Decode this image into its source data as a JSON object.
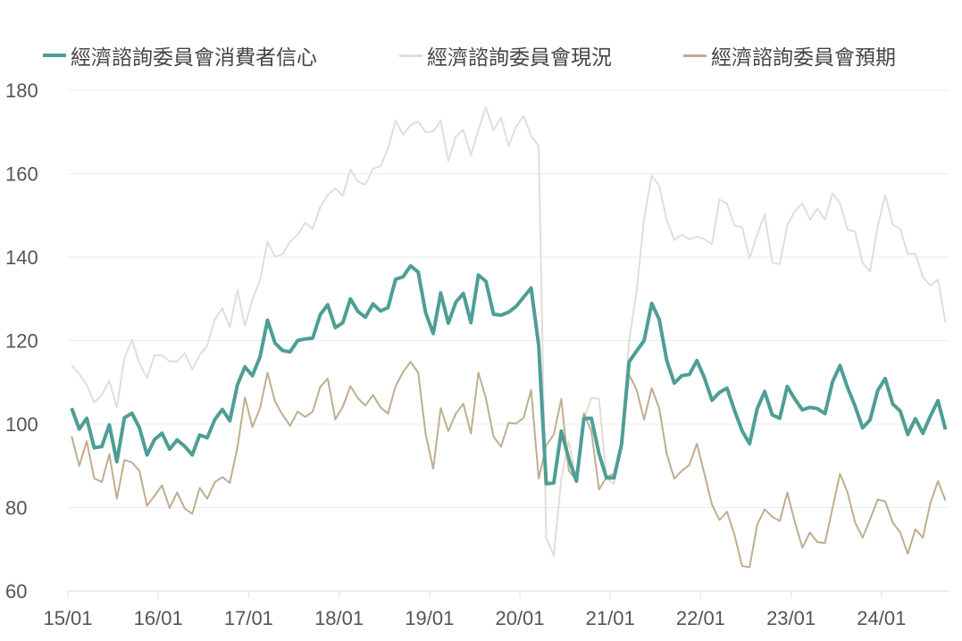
{
  "chart_data": {
    "type": "line",
    "title": "",
    "xlabel": "",
    "ylabel": "",
    "x_start": "2015-01",
    "x_frequency": "monthly",
    "x_tick_labels": [
      "15/01",
      "16/01",
      "17/01",
      "18/01",
      "19/01",
      "20/01",
      "21/01",
      "22/01",
      "23/01",
      "24/01"
    ],
    "y_tick_labels": [
      "60",
      "80",
      "100",
      "120",
      "140",
      "160",
      "180"
    ],
    "ylim": [
      60,
      180
    ],
    "grid": true,
    "legend_position": "top",
    "series": [
      {
        "name": "經濟諮詢委員會消費者信心",
        "color": "#4E9E95",
        "width": 4,
        "values": [
          103.8,
          98.8,
          101.4,
          94.3,
          94.6,
          99.8,
          91.0,
          101.5,
          102.6,
          99.1,
          92.6,
          96.3,
          97.8,
          94.0,
          96.2,
          94.7,
          92.6,
          97.4,
          96.7,
          101.1,
          103.5,
          100.8,
          109.4,
          113.7,
          111.6,
          116.1,
          124.9,
          119.4,
          117.6,
          117.3,
          120.0,
          120.4,
          120.6,
          126.2,
          128.6,
          123.1,
          124.3,
          130.0,
          127.0,
          125.6,
          128.8,
          127.1,
          127.9,
          134.7,
          135.3,
          137.9,
          136.4,
          126.6,
          121.7,
          131.4,
          124.2,
          129.2,
          131.3,
          124.3,
          135.7,
          134.2,
          126.3,
          126.1,
          126.8,
          128.2,
          130.4,
          132.6,
          118.8,
          85.7,
          85.9,
          98.3,
          91.7,
          86.3,
          101.3,
          101.4,
          92.9,
          87.1,
          87.1,
          95.2,
          114.9,
          117.5,
          120.0,
          128.9,
          125.1,
          115.2,
          109.8,
          111.6,
          111.9,
          115.2,
          111.1,
          105.7,
          107.6,
          108.6,
          103.2,
          98.4,
          95.3,
          103.6,
          107.8,
          102.2,
          101.4,
          109.0,
          106.0,
          103.4,
          104.0,
          103.7,
          102.5,
          110.1,
          114.0,
          108.7,
          104.3,
          99.1,
          101.0,
          108.0,
          110.9,
          104.8,
          103.1,
          97.5,
          101.3,
          97.8,
          101.9,
          105.6,
          98.7
        ]
      },
      {
        "name": "經濟諮詢委員會現況",
        "color": "#E2DED7",
        "width": 2,
        "values": [
          114.1,
          112,
          109.4,
          105.2,
          107,
          110.4,
          104,
          115.8,
          120.2,
          114.6,
          111,
          116.5,
          116.5,
          115,
          115,
          117,
          113.1,
          116.5,
          118.8,
          125.1,
          127.7,
          123.2,
          132.1,
          123.5,
          129.9,
          134.5,
          143.7,
          140.1,
          140.7,
          143.7,
          145.4,
          148.2,
          146.8,
          152,
          154.9,
          156.5,
          154.7,
          161,
          158.1,
          157.4,
          161.2,
          161.8,
          166,
          172.7,
          169.3,
          171.7,
          172.5,
          169.9,
          170.1,
          172.7,
          163,
          168.9,
          170.5,
          164.4,
          170.5,
          175.9,
          170.4,
          173.4,
          166.6,
          171.3,
          173.8,
          169.1,
          166.6,
          72.8,
          68.5,
          86.9,
          95.9,
          86.5,
          101.2,
          106.3,
          106,
          86.9,
          85.7,
          95.5,
          120,
          131.9,
          149.2,
          159.5,
          157.1,
          148.8,
          144.1,
          145.4,
          144.3,
          144.9,
          144.3,
          143.1,
          153.8,
          152.8,
          147.5,
          147.2,
          139.7,
          145.3,
          150.2,
          138.7,
          138.3,
          147.6,
          151,
          152.9,
          149,
          151.6,
          149,
          155.3,
          152.9,
          146.6,
          146.1,
          138.6,
          136.6,
          147.2,
          154.9,
          147.8,
          146.7,
          140.7,
          140.8,
          135.2,
          133.2,
          134.6,
          124.4
        ]
      },
      {
        "name": "經濟諮詢委員會預期",
        "color": "#BFAE8E",
        "width": 2,
        "values": [
          97.1,
          90,
          95.9,
          87,
          86.1,
          92.8,
          82.1,
          91.4,
          90.8,
          88.8,
          80.4,
          82.8,
          85.3,
          79.9,
          83.6,
          79.8,
          78.5,
          84.7,
          82.1,
          86.1,
          87.3,
          85.9,
          94.4,
          106.4,
          99.3,
          103.8,
          112.3,
          105.4,
          102.2,
          99.6,
          103,
          101.7,
          103,
          108.9,
          110.9,
          101.1,
          104.2,
          109.1,
          106.2,
          104.4,
          107,
          104,
          102.5,
          109.1,
          112.5,
          114.9,
          112.3,
          97.5,
          89.3,
          103.8,
          98.3,
          102.5,
          104.9,
          97.7,
          112.3,
          106.2,
          97,
          94.6,
          100.3,
          100.1,
          101.5,
          108.2,
          86.9,
          94.8,
          97.5,
          106,
          88.8,
          86.5,
          102.6,
          98.3,
          84.3,
          87.3,
          88.1,
          95.6,
          111.9,
          108.2,
          101.1,
          108.6,
          103.8,
          92.8,
          86.9,
          88.8,
          90.2,
          95.3,
          88.1,
          80.7,
          77,
          79,
          73.4,
          66,
          65.7,
          75.8,
          79.6,
          77.8,
          76.8,
          83.6,
          76.6,
          70.4,
          74,
          71.7,
          71.5,
          79.8,
          88.1,
          83.6,
          76.4,
          72.8,
          77.2,
          81.9,
          81.5,
          76.4,
          74,
          68.9,
          74.8,
          72.8,
          81.1,
          86.3,
          81.7
        ]
      }
    ]
  }
}
